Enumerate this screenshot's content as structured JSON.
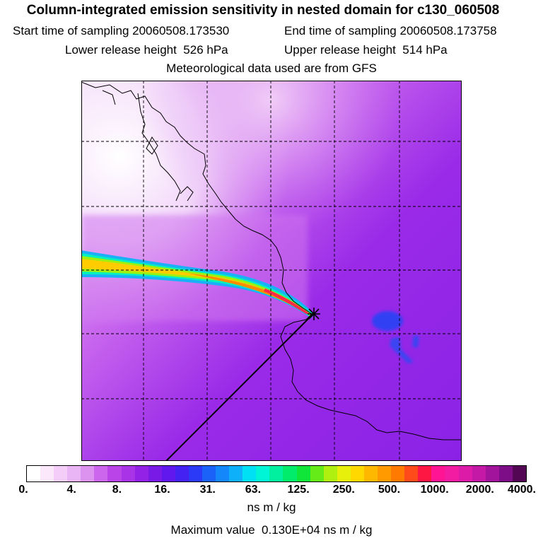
{
  "header": {
    "title": "Column-integrated emission sensitivity in nested domain for c130_060508",
    "start_label": "Start time of sampling",
    "start_value": "20060508.173530",
    "end_label": "End time of sampling",
    "end_value": "20060508.173758",
    "lower_label": "Lower release height",
    "lower_value": "526 hPa",
    "upper_label": "Upper release height",
    "upper_value": "514 hPa",
    "met_text": "Meteorological data used are from GFS"
  },
  "legend": {
    "tick_labels": [
      "0.",
      "4.",
      "8.",
      "16.",
      "31.",
      "63.",
      "125.",
      "250.",
      "500.",
      "1000.",
      "2000.",
      "4000."
    ],
    "colors": [
      "#ffffff",
      "#fbe9fb",
      "#f4cef8",
      "#eab5f4",
      "#dc93ef",
      "#cc66ec",
      "#bb44e8",
      "#a933e6",
      "#9322e6",
      "#7a1ae6",
      "#6018ee",
      "#4422f2",
      "#2a3af6",
      "#1b62f8",
      "#1488fa",
      "#0fb0fa",
      "#00e0f4",
      "#00f4d6",
      "#00f0a0",
      "#00ec6a",
      "#10e53a",
      "#64eb18",
      "#b0f010",
      "#e6f00a",
      "#ffd800",
      "#ffb800",
      "#ff9a00",
      "#ff7a00",
      "#ff4a1a",
      "#ff1744",
      "#ff1493",
      "#f21ca2",
      "#dc1ca8",
      "#c418a6",
      "#a2149c",
      "#7e0e88",
      "#520654"
    ],
    "unit": "ns m / kg",
    "max_label": "Maximum value",
    "max_value": "0.130E+04 ns m / kg"
  }
}
